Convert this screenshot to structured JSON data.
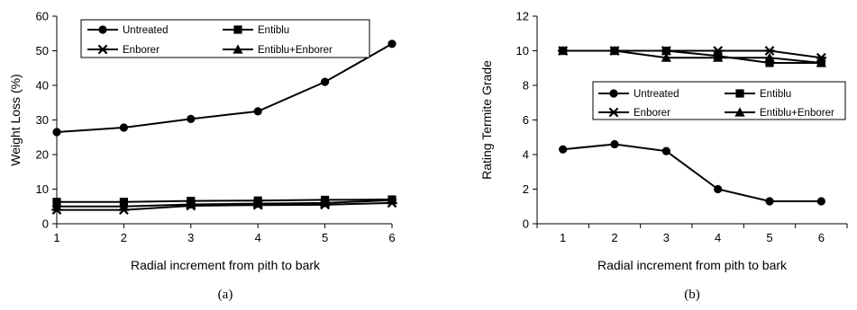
{
  "chart_data": [
    {
      "panel_label": "(a)",
      "type": "line",
      "x": [
        1,
        2,
        3,
        4,
        5,
        6
      ],
      "xlabel": "Radial increment from pith to bark",
      "ylabel": "Weight Loss (%)",
      "xlim": [
        1,
        6
      ],
      "ylim": [
        0,
        60
      ],
      "yticks": [
        0,
        10,
        20,
        30,
        40,
        50,
        60
      ],
      "xticks": [
        1,
        2,
        3,
        4,
        5,
        6
      ],
      "grid": false,
      "legend_position": "top, two columns",
      "series": [
        {
          "name": "Untreated",
          "marker": "circle",
          "values": [
            26.5,
            27.8,
            30.3,
            32.5,
            41,
            52
          ]
        },
        {
          "name": "Entiblu",
          "marker": "square",
          "values": [
            6.3,
            6.3,
            6.6,
            6.7,
            6.9,
            7.0
          ]
        },
        {
          "name": "Enborer",
          "marker": "x-star",
          "values": [
            4.0,
            4.0,
            5.2,
            5.4,
            5.5,
            6.0
          ]
        },
        {
          "name": "Entiblu+Enborer",
          "marker": "triangle",
          "values": [
            5.0,
            5.0,
            5.6,
            5.8,
            6.0,
            6.8
          ]
        }
      ]
    },
    {
      "panel_label": "(b)",
      "type": "line",
      "x": [
        1,
        2,
        3,
        4,
        5,
        6
      ],
      "xlabel": "Radial increment from pith to bark",
      "ylabel": "Rating Termite Grade",
      "xlim": [
        0.5,
        6.5
      ],
      "ylim": [
        0,
        12
      ],
      "yticks": [
        0,
        2,
        4,
        6,
        8,
        10,
        12
      ],
      "xticks": [
        1,
        2,
        3,
        4,
        5,
        6
      ],
      "grid": false,
      "legend_position": "center-right, two columns",
      "series": [
        {
          "name": "Untreated",
          "marker": "circle",
          "values": [
            4.3,
            4.6,
            4.2,
            2.0,
            1.3,
            1.3
          ]
        },
        {
          "name": "Entiblu",
          "marker": "square",
          "values": [
            10,
            10,
            10,
            9.7,
            9.3,
            9.3
          ]
        },
        {
          "name": "Enborer",
          "marker": "x-star",
          "values": [
            10,
            10,
            10,
            10,
            10,
            9.6
          ]
        },
        {
          "name": "Entiblu+Enborer",
          "marker": "triangle",
          "values": [
            10,
            10,
            9.6,
            9.6,
            9.6,
            9.3
          ]
        }
      ]
    }
  ]
}
